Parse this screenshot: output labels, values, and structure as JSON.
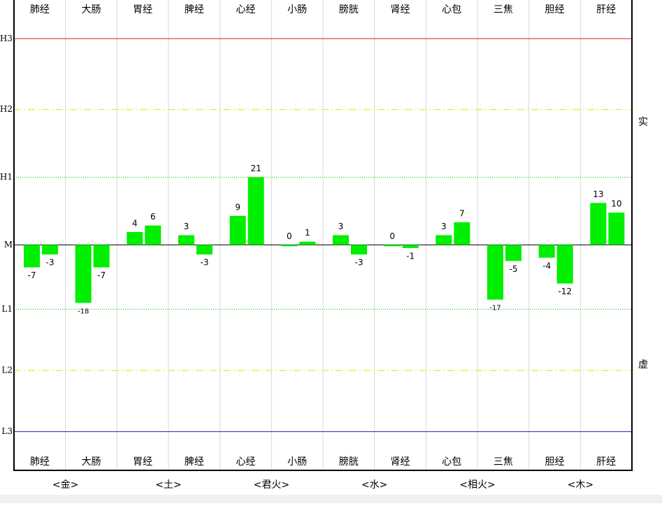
{
  "chart_data": {
    "type": "bar",
    "categories": [
      "肺经",
      "大肠",
      "胃经",
      "脾经",
      "心经",
      "小肠",
      "膀胱",
      "肾经",
      "心包",
      "三焦",
      "胆经",
      "肝经"
    ],
    "series": [
      {
        "color": "#00ee00",
        "values": [
          -7,
          -18,
          4,
          3,
          9,
          0,
          3,
          0,
          3,
          -17,
          -4,
          13
        ]
      },
      {
        "color": "#00ee00",
        "values": [
          -3,
          -7,
          6,
          -3,
          21,
          1,
          -3,
          -1,
          7,
          -5,
          -12,
          10
        ]
      }
    ],
    "ylim": [
      -70,
      76
    ],
    "yticks": [
      {
        "value": 64,
        "label": "H3"
      },
      {
        "value": 42,
        "label": "H2"
      },
      {
        "value": 21,
        "label": "H1"
      },
      {
        "value": 0,
        "label": "M"
      },
      {
        "value": -20,
        "label": "L1"
      },
      {
        "value": -39,
        "label": "L2"
      },
      {
        "value": -58,
        "label": "L3"
      }
    ],
    "ytick_colors": [
      "#e02020",
      "#e8e000",
      "#00cc00",
      "#000000",
      "#00cc00",
      "#e8e000",
      "#2020c0"
    ],
    "ytick_styles": [
      "solid",
      "dashdot",
      "dotted",
      "solid",
      "dotted",
      "dashdot",
      "solid"
    ],
    "side_labels": [
      "实",
      "虚"
    ],
    "groups": [
      "<金>",
      "<土>",
      "<君火>",
      "<水>",
      "<相火>",
      "<木>"
    ]
  }
}
